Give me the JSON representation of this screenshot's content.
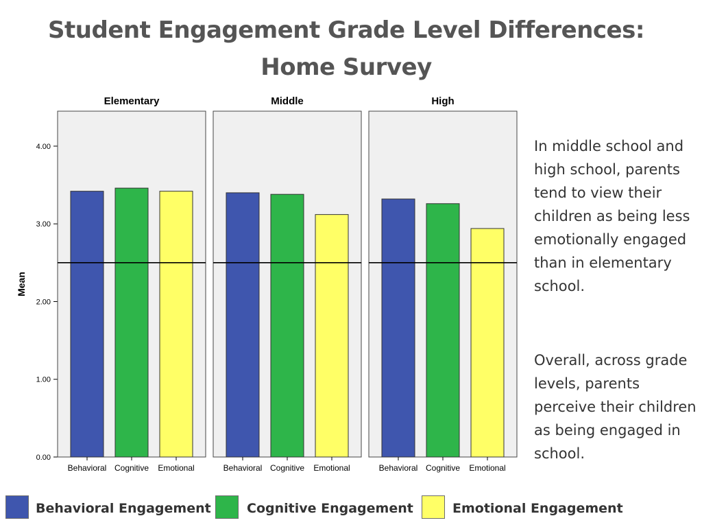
{
  "slide": {
    "title_line1": "Student Engagement Grade Level Differences:",
    "title_line2": "Home Survey"
  },
  "notes": {
    "paragraph1": "In middle school and high school, parents tend to view their children as being less emotionally engaged than in elementary school.",
    "paragraph2": "Overall, across grade levels, parents perceive their children as being engaged in school."
  },
  "legend": [
    {
      "label": "Behavioral Engagement",
      "color": "#3F56AE"
    },
    {
      "label": "Cognitive Engagement",
      "color": "#2EB54A"
    },
    {
      "label": "Emotional Engagement",
      "color": "#FFFF66"
    }
  ],
  "chart_data": {
    "type": "bar",
    "panels": [
      "Elementary",
      "Middle",
      "High"
    ],
    "categories": [
      "Behavioral",
      "Cognitive",
      "Emotional"
    ],
    "series": [
      {
        "panel": "Elementary",
        "values": [
          3.42,
          3.46,
          3.42
        ]
      },
      {
        "panel": "Middle",
        "values": [
          3.4,
          3.38,
          3.12
        ]
      },
      {
        "panel": "High",
        "values": [
          3.32,
          3.26,
          2.94
        ]
      }
    ],
    "colors": [
      "#3F56AE",
      "#2EB54A",
      "#FFFF66"
    ],
    "ylabel": "Mean",
    "yticks": [
      0,
      1,
      2,
      3,
      4
    ],
    "ytick_labels": [
      "0.00",
      "1.00",
      "2.00",
      "3.00",
      "4.00"
    ],
    "ylim": [
      0,
      4.45
    ],
    "reference_line": 2.5
  }
}
